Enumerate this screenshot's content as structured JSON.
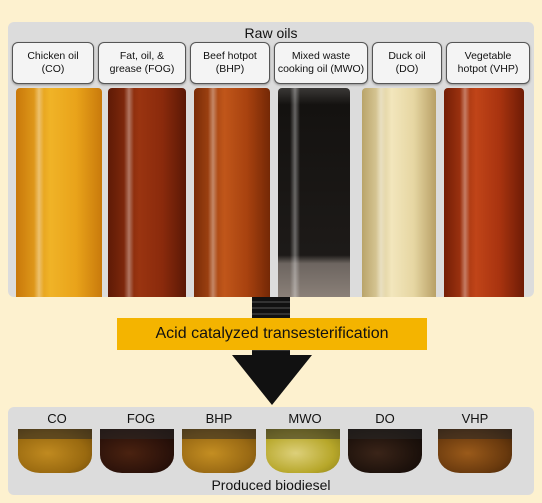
{
  "raw_oils": {
    "title": "Raw oils",
    "samples": [
      {
        "line1": "Chicken oil",
        "line2": "(CO)",
        "color": "#e9a31a"
      },
      {
        "line1": "Fat, oil, &",
        "line2": "grease (FOG)",
        "color": "#8a2a0c"
      },
      {
        "line1": "Beef hotpot",
        "line2": "(BHP)",
        "color": "#a8420f"
      },
      {
        "line1": "Mixed waste",
        "line2": "cooking oil (MWO)",
        "color": "#1d1a18"
      },
      {
        "line1": "Duck oil",
        "line2": "(DO)",
        "color": "#e6d6a2"
      },
      {
        "line1": "Vegetable",
        "line2": "hotpot (VHP)",
        "color": "#a8330f"
      }
    ]
  },
  "process": {
    "label": "Acid catalyzed transesterification",
    "color": "#f4b400"
  },
  "biodiesel": {
    "title": "Produced biodiesel",
    "samples": [
      {
        "code": "CO",
        "color": "#9a6a10"
      },
      {
        "code": "FOG",
        "color": "#2c120a"
      },
      {
        "code": "BHP",
        "color": "#9a6a14"
      },
      {
        "code": "MWO",
        "color": "#b7a72a"
      },
      {
        "code": "DO",
        "color": "#1e120c"
      },
      {
        "code": "VHP",
        "color": "#6a3a0e"
      }
    ]
  }
}
